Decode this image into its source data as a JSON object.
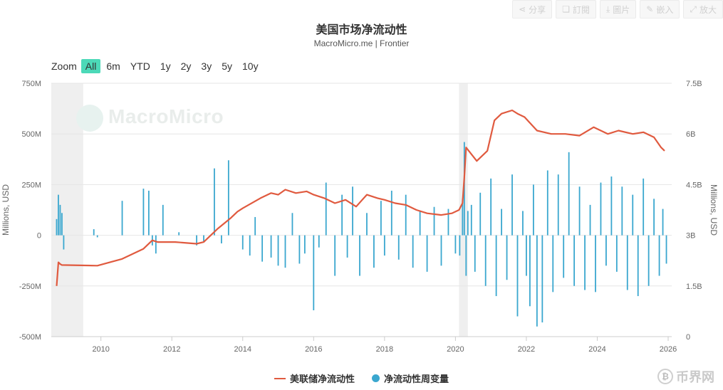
{
  "toolbar": {
    "share": {
      "label": "分享",
      "icon": "share-icon"
    },
    "subscribe": {
      "label": "訂閱",
      "icon": "bookmark-icon"
    },
    "image": {
      "label": "圖片",
      "icon": "download-icon"
    },
    "embed": {
      "label": "嵌入",
      "icon": "pencil-icon"
    },
    "zoom": {
      "label": "放大",
      "icon": "expand-icon"
    }
  },
  "range_selector": {
    "label": "Zoom",
    "buttons": [
      "All",
      "6m",
      "YTD",
      "1y",
      "2y",
      "3y",
      "5y",
      "10y"
    ],
    "active": "All"
  },
  "watermark": "MacroMicro",
  "corner_logo": "币界网",
  "colors": {
    "line": "#e05a3f",
    "bars": "#3aa7cf",
    "accent": "#4cd9b8",
    "recession": "#efefef"
  },
  "chart_data": {
    "type": "line",
    "title": "美国市场净流动性",
    "subtitle": "MacroMicro.me | Frontier",
    "ylabel_left": "Millions, USD",
    "ylabel_right": "Millions, USD",
    "x_ticks": [
      "2010",
      "2012",
      "2014",
      "2016",
      "2018",
      "2020",
      "2022",
      "2024",
      "2026"
    ],
    "y_left_ticks": [
      "750M",
      "500M",
      "250M",
      "0",
      "-250M",
      "-500M"
    ],
    "y_right_ticks": [
      "7.5B",
      "6B",
      "4.5B",
      "3B",
      "1.5B",
      "0"
    ],
    "y_left_range": [
      -500,
      750
    ],
    "y_right_range": [
      0,
      7.5
    ],
    "x_range": [
      2008.6,
      2026.1
    ],
    "recession_bands": [
      [
        2008.6,
        2009.5
      ],
      [
        2020.1,
        2020.35
      ]
    ],
    "grid": "horizontal",
    "legend_position": "bottom-center",
    "series": [
      {
        "name": "美联储净流动性",
        "type": "line",
        "axis": "right",
        "x": [
          2008.75,
          2008.8,
          2008.85,
          2008.9,
          2009.9,
          2010.6,
          2011.2,
          2011.45,
          2011.6,
          2012.1,
          2012.7,
          2012.9,
          2013.3,
          2013.65,
          2013.85,
          2014.0,
          2014.5,
          2014.8,
          2015.0,
          2015.2,
          2015.5,
          2015.8,
          2016.0,
          2016.3,
          2016.6,
          2016.9,
          2017.2,
          2017.5,
          2017.8,
          2018.0,
          2018.3,
          2018.6,
          2018.9,
          2019.2,
          2019.6,
          2019.9,
          2020.1,
          2020.2,
          2020.25,
          2020.3,
          2020.45,
          2020.6,
          2020.9,
          2021.1,
          2021.3,
          2021.6,
          2021.75,
          2021.95,
          2022.3,
          2022.7,
          2023.1,
          2023.5,
          2023.9,
          2024.3,
          2024.6,
          2025.0,
          2025.3,
          2025.6,
          2025.8,
          2025.9
        ],
        "values": [
          1.5,
          2.2,
          2.15,
          2.12,
          2.1,
          2.3,
          2.6,
          2.85,
          2.8,
          2.8,
          2.75,
          2.8,
          3.2,
          3.5,
          3.7,
          3.8,
          4.1,
          4.25,
          4.2,
          4.35,
          4.25,
          4.3,
          4.2,
          4.1,
          3.95,
          4.05,
          3.85,
          4.2,
          4.1,
          4.05,
          3.95,
          3.9,
          3.75,
          3.65,
          3.6,
          3.65,
          3.75,
          3.95,
          4.7,
          5.6,
          5.4,
          5.2,
          5.5,
          6.4,
          6.6,
          6.7,
          6.6,
          6.5,
          6.1,
          6.0,
          6.0,
          5.95,
          6.2,
          6.0,
          6.1,
          6.0,
          6.05,
          5.9,
          5.6,
          5.5
        ]
      },
      {
        "name": "净流动性周变量",
        "type": "bar",
        "axis": "left",
        "x": [
          2008.75,
          2008.8,
          2008.85,
          2008.9,
          2008.95,
          2009.8,
          2009.9,
          2010.6,
          2011.2,
          2011.35,
          2011.45,
          2011.55,
          2011.75,
          2012.2,
          2012.7,
          2012.9,
          2013.2,
          2013.4,
          2013.6,
          2014.0,
          2014.2,
          2014.35,
          2014.55,
          2014.8,
          2015.0,
          2015.2,
          2015.4,
          2015.6,
          2015.75,
          2016.0,
          2016.15,
          2016.35,
          2016.6,
          2016.8,
          2016.95,
          2017.1,
          2017.3,
          2017.5,
          2017.7,
          2017.9,
          2018.0,
          2018.2,
          2018.4,
          2018.6,
          2018.8,
          2019.0,
          2019.2,
          2019.4,
          2019.6,
          2019.8,
          2020.0,
          2020.12,
          2020.2,
          2020.25,
          2020.3,
          2020.35,
          2020.45,
          2020.55,
          2020.7,
          2020.85,
          2021.0,
          2021.15,
          2021.3,
          2021.45,
          2021.6,
          2021.75,
          2021.9,
          2022.0,
          2022.1,
          2022.2,
          2022.3,
          2022.45,
          2022.6,
          2022.75,
          2022.9,
          2023.05,
          2023.2,
          2023.35,
          2023.5,
          2023.65,
          2023.8,
          2023.95,
          2024.1,
          2024.25,
          2024.4,
          2024.55,
          2024.7,
          2024.85,
          2025.0,
          2025.15,
          2025.3,
          2025.45,
          2025.6,
          2025.75,
          2025.85,
          2025.95
        ],
        "values": [
          80,
          200,
          150,
          110,
          -70,
          30,
          -10,
          170,
          230,
          220,
          -50,
          -90,
          150,
          15,
          -50,
          -30,
          330,
          -40,
          370,
          -70,
          -100,
          90,
          -130,
          -110,
          -150,
          -160,
          110,
          -140,
          -90,
          -370,
          -60,
          260,
          -200,
          200,
          -110,
          240,
          -200,
          110,
          -160,
          170,
          -100,
          220,
          -120,
          200,
          -160,
          120,
          -180,
          140,
          -150,
          130,
          -90,
          -100,
          180,
          460,
          -200,
          120,
          150,
          -180,
          210,
          -250,
          280,
          -300,
          130,
          -220,
          300,
          -400,
          120,
          -200,
          -350,
          250,
          -450,
          -430,
          320,
          -280,
          300,
          -210,
          410,
          -250,
          240,
          -270,
          150,
          -280,
          260,
          -150,
          290,
          -180,
          240,
          -270,
          200,
          -300,
          280,
          -250,
          180,
          -200,
          130,
          -140
        ]
      }
    ]
  }
}
